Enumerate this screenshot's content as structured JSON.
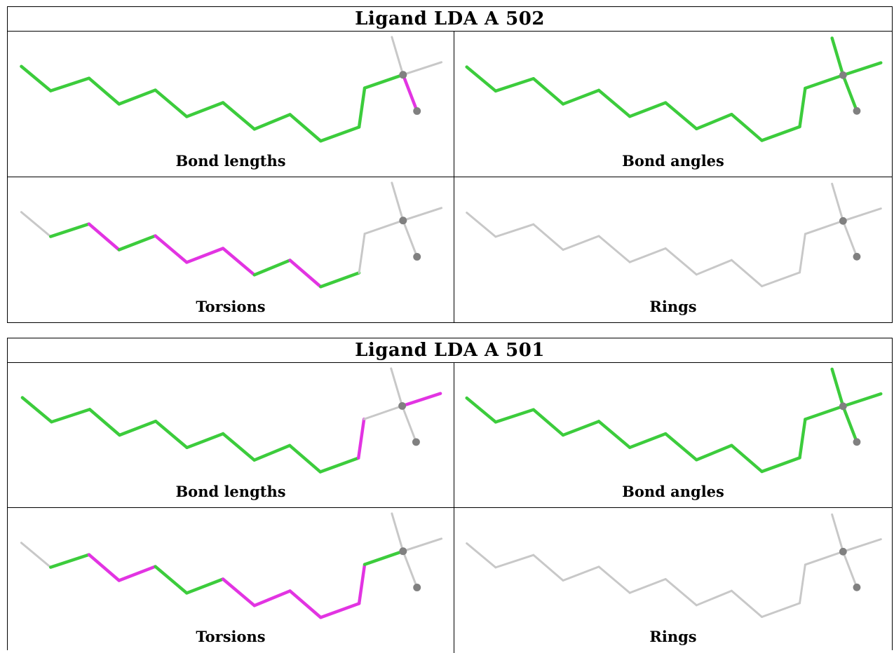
{
  "colors": {
    "ok": "#3ccc3c",
    "outlier": "#e234e2",
    "neutral": "#c8c8c8",
    "atom": "#808080"
  },
  "ligands": [
    {
      "title": "Ligand LDA A 502",
      "panels": [
        {
          "label": "Bond lengths",
          "segments": [
            "ok",
            "ok",
            "ok",
            "ok",
            "ok",
            "ok",
            "ok",
            "ok",
            "ok",
            "ok",
            "ok",
            "ok",
            "neutral",
            "neutral",
            "outlier"
          ]
        },
        {
          "label": "Bond angles",
          "segments": [
            "ok",
            "ok",
            "ok",
            "ok",
            "ok",
            "ok",
            "ok",
            "ok",
            "ok",
            "ok",
            "ok",
            "ok",
            "ok",
            "ok",
            "ok"
          ]
        },
        {
          "label": "Torsions",
          "segments": [
            "neutral",
            "ok",
            "outlier",
            "ok",
            "outlier",
            "outlier",
            "outlier",
            "ok",
            "outlier",
            "ok",
            "neutral",
            "neutral",
            "neutral"
          ]
        },
        {
          "label": "Rings",
          "segments": [
            "neutral",
            "neutral",
            "neutral",
            "neutral",
            "neutral",
            "neutral",
            "neutral",
            "neutral",
            "neutral",
            "neutral",
            "neutral",
            "neutral",
            "neutral",
            "neutral",
            "neutral"
          ]
        }
      ]
    },
    {
      "title": "Ligand LDA A 501",
      "panels": [
        {
          "label": "Bond lengths",
          "segments": [
            "ok",
            "ok",
            "ok",
            "ok",
            "ok",
            "ok",
            "ok",
            "ok",
            "ok",
            "ok",
            "outlier",
            "neutral",
            "neutral",
            "outlier"
          ]
        },
        {
          "label": "Bond angles",
          "segments": [
            "ok",
            "ok",
            "ok",
            "ok",
            "ok",
            "ok",
            "ok",
            "ok",
            "ok",
            "ok",
            "ok",
            "ok",
            "ok",
            "ok",
            "ok"
          ]
        },
        {
          "label": "Torsions",
          "segments": [
            "neutral",
            "ok",
            "outlier",
            "outlier",
            "ok",
            "ok",
            "outlier",
            "outlier",
            "outlier",
            "outlier",
            "outlier",
            "ok",
            "neutral",
            "neutral",
            "neutral"
          ]
        },
        {
          "label": "Rings",
          "segments": [
            "neutral",
            "neutral",
            "neutral",
            "neutral",
            "neutral",
            "neutral",
            "neutral",
            "neutral",
            "neutral",
            "neutral",
            "neutral",
            "neutral",
            "neutral",
            "neutral",
            "neutral"
          ]
        }
      ]
    }
  ]
}
